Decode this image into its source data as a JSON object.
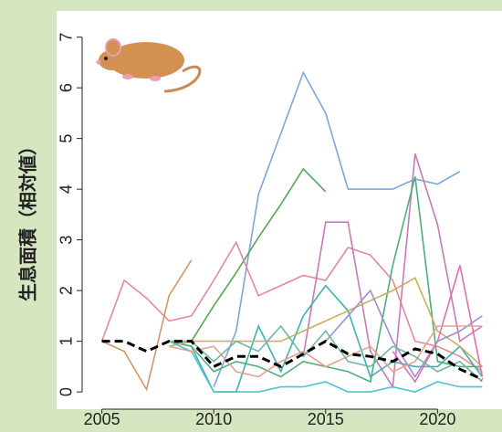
{
  "chart_data": {
    "type": "line",
    "y_label": "生息面積（相対値）",
    "x": [
      2005,
      2006,
      2007,
      2008,
      2009,
      2010,
      2011,
      2012,
      2013,
      2014,
      2015,
      2016,
      2017,
      2018,
      2019,
      2020,
      2021,
      2022
    ],
    "xlim": [
      2004.2,
      2022.8
    ],
    "xticks": [
      2005,
      2010,
      2015,
      2020
    ],
    "ylim": [
      -0.25,
      7.3
    ],
    "yticks": [
      0,
      1,
      2,
      3,
      4,
      5,
      6,
      7
    ],
    "series": [
      {
        "color": "#7fa6d8",
        "values": [
          null,
          null,
          null,
          null,
          null,
          0.1,
          1.2,
          3.9,
          5.1,
          6.3,
          5.5,
          4.0,
          4.0,
          4.0,
          4.2,
          4.1,
          4.35,
          null
        ]
      },
      {
        "color": "#5aa55a",
        "values": [
          null,
          null,
          null,
          null,
          1.0,
          1.7,
          2.35,
          3.05,
          3.7,
          4.4,
          3.95,
          null,
          null,
          null,
          null,
          null,
          null,
          null
        ]
      },
      {
        "color": "#e08a9a",
        "values": [
          1.0,
          2.2,
          1.85,
          1.4,
          1.5,
          2.2,
          2.95,
          1.9,
          2.1,
          2.3,
          2.2,
          2.85,
          2.7,
          2.2,
          1.0,
          0.9,
          0.7,
          0.4
        ]
      },
      {
        "color": "#d4956a",
        "values": [
          1.0,
          0.8,
          0.05,
          1.9,
          2.6,
          null,
          null,
          null,
          null,
          null,
          null,
          null,
          null,
          null,
          null,
          null,
          null,
          null
        ]
      },
      {
        "color": "#c77ab8",
        "values": [
          null,
          null,
          null,
          null,
          null,
          null,
          null,
          null,
          null,
          0.7,
          3.35,
          3.35,
          0.8,
          0.1,
          4.7,
          3.3,
          1.0,
          1.3
        ]
      },
      {
        "color": "#40b0b0",
        "values": [
          null,
          null,
          null,
          1.0,
          0.9,
          0.0,
          0.0,
          1.3,
          0.4,
          1.5,
          2.1,
          1.6,
          0.3,
          0.6,
          0.5,
          0.5,
          0.9,
          0.3
        ]
      },
      {
        "color": "#4caf7a",
        "values": [
          null,
          null,
          null,
          1.0,
          0.9,
          0.4,
          0.6,
          0.5,
          0.3,
          0.6,
          0.5,
          0.4,
          0.2,
          2.5,
          4.25,
          0.6,
          0.5,
          0.5
        ]
      },
      {
        "color": "#c9b060",
        "values": [
          null,
          null,
          null,
          0.9,
          1.0,
          1.0,
          1.0,
          1.0,
          1.0,
          1.2,
          1.4,
          1.6,
          1.8,
          2.0,
          2.25,
          1.2,
          0.9,
          0.5
        ]
      },
      {
        "color": "#9c8fd0",
        "values": [
          null,
          null,
          null,
          null,
          null,
          null,
          null,
          null,
          null,
          null,
          1.0,
          1.5,
          2.0,
          1.0,
          0.3,
          1.0,
          1.2,
          1.5
        ]
      },
      {
        "color": "#e070b0",
        "values": [
          null,
          null,
          null,
          null,
          null,
          null,
          null,
          null,
          null,
          null,
          null,
          null,
          null,
          0.8,
          0.2,
          1.0,
          2.5,
          0.3
        ]
      },
      {
        "color": "#50c0d8",
        "values": [
          null,
          null,
          null,
          1.0,
          0.8,
          0.0,
          0.0,
          0.0,
          0.1,
          0.1,
          0.2,
          0.0,
          0.0,
          0.1,
          0.0,
          0.2,
          0.1,
          0.1
        ]
      },
      {
        "color": "#e8a090",
        "values": [
          null,
          null,
          null,
          0.9,
          0.8,
          0.9,
          0.4,
          0.3,
          0.6,
          0.8,
          0.5,
          0.7,
          0.9,
          0.4,
          0.6,
          1.3,
          1.3,
          1.3
        ]
      },
      {
        "color": "#70b8a0",
        "values": [
          null,
          null,
          null,
          1.0,
          1.0,
          0.6,
          1.0,
          0.8,
          1.3,
          0.7,
          1.2,
          0.6,
          0.5,
          0.9,
          0.7,
          0.4,
          0.6,
          0.2
        ]
      },
      {
        "color": "#000000",
        "dash": true,
        "values": [
          1.0,
          1.0,
          0.8,
          1.0,
          1.0,
          0.5,
          0.7,
          0.7,
          0.5,
          0.75,
          1.0,
          0.75,
          0.7,
          0.6,
          0.85,
          0.75,
          0.45,
          0.25
        ]
      }
    ]
  }
}
